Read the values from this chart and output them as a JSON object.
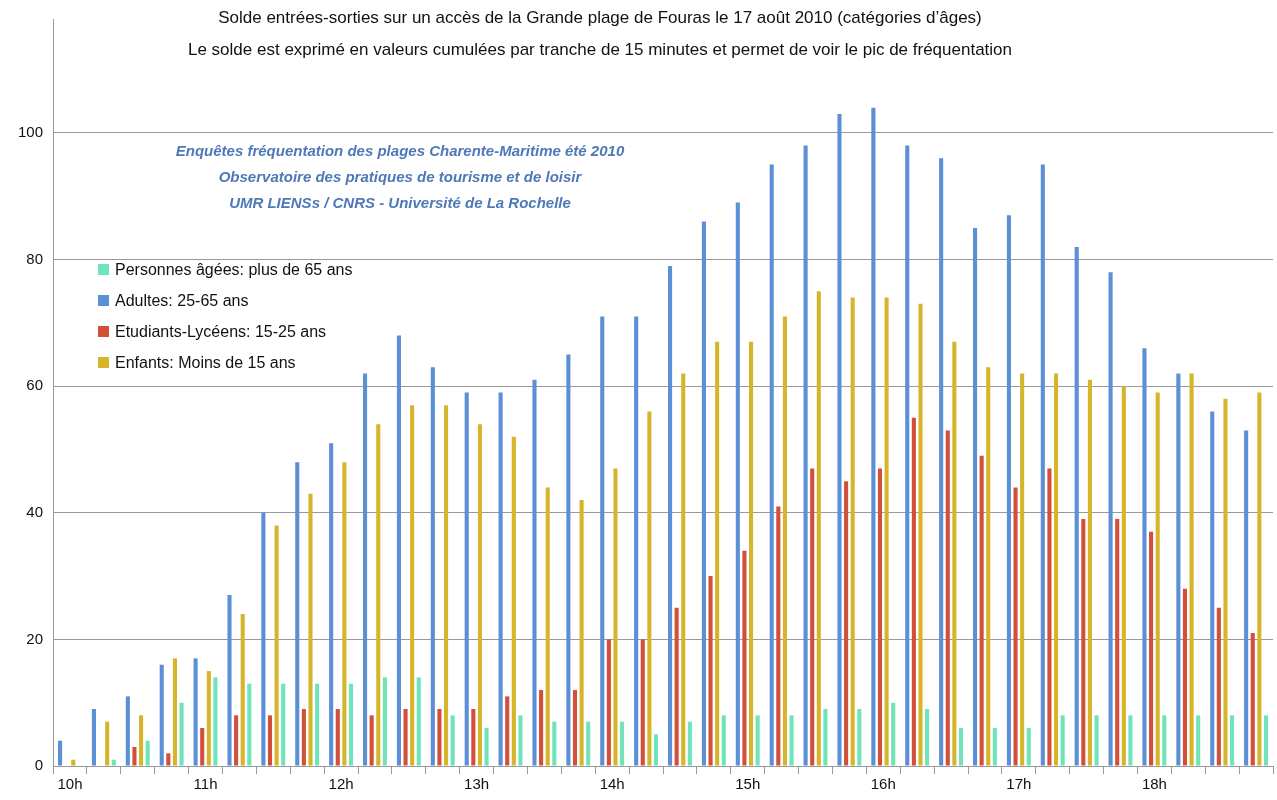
{
  "chart_data": {
    "type": "bar",
    "title": "Solde entrées-sorties sur un accès de la Grande plage de Fouras le 17 août 2010  (catégories d’âges)",
    "subtitle": "Le solde est exprimé en valeurs cumulées par tranche de 15 minutes et permet de voir le pic de fréquentation",
    "annotations": [
      "Enquêtes fréquentation des plages Charente-Maritime été 2010",
      "Observatoire des pratiques de tourisme et de loisir",
      "UMR LIENSs / CNRS - Université de La Rochelle"
    ],
    "categories": [
      "10h",
      null,
      null,
      null,
      "11h",
      null,
      null,
      null,
      "12h",
      null,
      null,
      null,
      "13h",
      null,
      null,
      null,
      "14h",
      null,
      null,
      null,
      "15h",
      null,
      null,
      null,
      "16h",
      null,
      null,
      null,
      "17h",
      null,
      null,
      null,
      "18h",
      null,
      null,
      null
    ],
    "series": [
      {
        "name": " Adultes: 25-65 ans",
        "color": "#5b8fd6",
        "values": [
          4,
          9,
          11,
          16,
          17,
          27,
          40,
          48,
          51,
          62,
          68,
          63,
          59,
          59,
          61,
          65,
          71,
          71,
          79,
          86,
          89,
          95,
          98,
          103,
          104,
          98,
          96,
          85,
          87,
          95,
          82,
          78,
          66,
          62,
          56,
          53
        ]
      },
      {
        "name": "Etudiants-Lycéens: 15-25 ans",
        "color": "#d2503a",
        "values": [
          0,
          0,
          3,
          2,
          6,
          8,
          8,
          9,
          9,
          8,
          9,
          9,
          9,
          11,
          12,
          12,
          20,
          20,
          25,
          30,
          34,
          41,
          47,
          45,
          47,
          55,
          53,
          49,
          44,
          47,
          39,
          39,
          37,
          28,
          25,
          21
        ]
      },
      {
        "name": "Enfants: Moins de 15 ans",
        "color": "#d6b52a",
        "values": [
          1,
          7,
          8,
          17,
          15,
          24,
          38,
          43,
          48,
          54,
          57,
          57,
          54,
          52,
          44,
          42,
          47,
          56,
          62,
          67,
          67,
          71,
          75,
          74,
          74,
          73,
          67,
          63,
          62,
          62,
          61,
          60,
          59,
          62,
          58,
          59
        ]
      },
      {
        "name": "Personnes âgées: plus de 65 ans",
        "color": "#6fe3b9",
        "values": [
          0,
          1,
          4,
          10,
          14,
          13,
          13,
          13,
          13,
          14,
          14,
          8,
          6,
          8,
          7,
          7,
          7,
          5,
          7,
          8,
          8,
          8,
          9,
          9,
          10,
          9,
          6,
          6,
          6,
          8,
          8,
          8,
          8,
          8,
          8,
          8
        ]
      }
    ],
    "ylim": [
      0,
      118
    ],
    "yticks": [
      0,
      20,
      40,
      60,
      80,
      100
    ],
    "grid": "y",
    "legend": "top left"
  }
}
